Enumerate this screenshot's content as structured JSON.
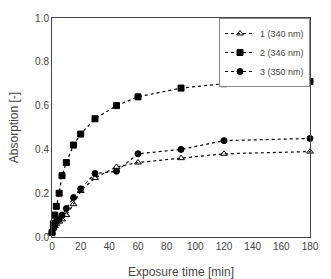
{
  "chart_data": {
    "type": "line",
    "x": [
      0,
      1,
      2,
      3,
      5,
      7,
      10,
      15,
      20,
      30,
      45,
      60,
      90,
      120,
      180
    ],
    "series": [
      {
        "name": "1 (340 nm)",
        "color": "#000000",
        "marker": "triangle-up-open",
        "line_style": "dotted",
        "values": [
          0.02,
          0.04,
          0.05,
          0.06,
          0.07,
          0.08,
          0.1,
          0.15,
          0.21,
          0.27,
          0.32,
          0.34,
          0.36,
          0.38,
          0.39
        ]
      },
      {
        "name": "2 (346 nm)",
        "color": "#000000",
        "marker": "square",
        "line_style": "dotted",
        "values": [
          0.02,
          0.06,
          0.1,
          0.14,
          0.2,
          0.28,
          0.34,
          0.42,
          0.47,
          0.54,
          0.6,
          0.64,
          0.68,
          0.7,
          0.71
        ]
      },
      {
        "name": "3 (350 nm)",
        "color": "#000000",
        "marker": "circle",
        "line_style": "dotted",
        "values": [
          0.02,
          0.04,
          0.06,
          0.07,
          0.08,
          0.1,
          0.13,
          0.18,
          0.22,
          0.29,
          0.3,
          0.38,
          0.4,
          0.44,
          0.45
        ]
      }
    ],
    "xlabel": "Exposure time [min]",
    "ylabel": "Absorption [-]",
    "xlim": [
      0,
      180
    ],
    "ylim": [
      0.0,
      1.0
    ],
    "xticks": [
      0,
      20,
      40,
      60,
      80,
      100,
      120,
      140,
      160,
      180
    ],
    "yticks": [
      {
        "value": 0.0,
        "label": "0.0"
      },
      0.2,
      0.4,
      0.6,
      0.8,
      {
        "value": 1.0,
        "label": "1.0"
      }
    ],
    "grid": false,
    "legend": "upper right"
  }
}
